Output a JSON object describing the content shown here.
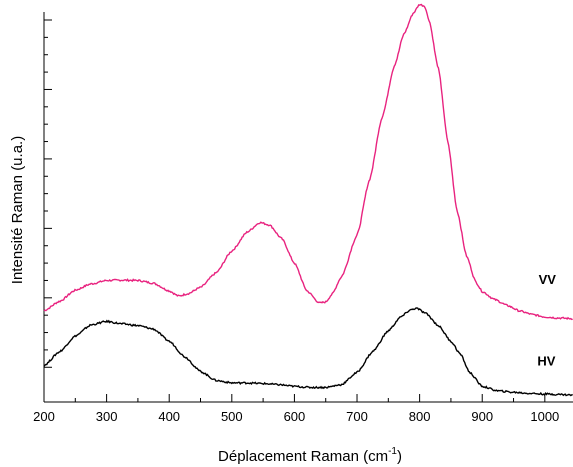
{
  "chart_data": {
    "type": "line",
    "xlabel": "Déplacement Raman (cm",
    "xlabel_superscript": "-1",
    "xlabel_close": ")",
    "ylabel": "Intensité Raman (u.a.)",
    "xlim": [
      200,
      1045
    ],
    "x_ticks": [
      "200",
      "300",
      "400",
      "500",
      "600",
      "700",
      "800",
      "900",
      "1000"
    ],
    "ylim": [
      0,
      11
    ],
    "y_tick_labels_shown": false,
    "grid": false,
    "series": [
      {
        "name": "VV",
        "color": "#e8237f",
        "x": [
          200,
          225,
          250,
          275,
          300,
          325,
          350,
          375,
          400,
          415,
          430,
          450,
          475,
          500,
          525,
          545,
          560,
          580,
          600,
          620,
          640,
          650,
          660,
          675,
          700,
          720,
          740,
          760,
          775,
          790,
          800,
          808,
          815,
          830,
          845,
          860,
          875,
          890,
          900,
          920,
          940,
          960,
          980,
          1000,
          1020,
          1045
        ],
        "y": [
          2.63,
          2.9,
          3.22,
          3.4,
          3.5,
          3.51,
          3.5,
          3.42,
          3.2,
          3.05,
          3.12,
          3.3,
          3.72,
          4.35,
          4.9,
          5.17,
          5.1,
          4.7,
          4.0,
          3.2,
          2.85,
          2.88,
          3.1,
          3.6,
          4.8,
          6.4,
          8.2,
          9.7,
          10.6,
          11.2,
          11.45,
          11.4,
          11.0,
          9.6,
          7.5,
          5.5,
          4.2,
          3.45,
          3.18,
          2.95,
          2.78,
          2.62,
          2.52,
          2.45,
          2.42,
          2.4
        ]
      },
      {
        "name": "HV",
        "color": "#000000",
        "x": [
          200,
          225,
          250,
          275,
          300,
          325,
          350,
          375,
          400,
          425,
          450,
          475,
          500,
          525,
          550,
          575,
          600,
          625,
          650,
          675,
          700,
          725,
          750,
          770,
          785,
          795,
          810,
          830,
          850,
          865,
          880,
          900,
          925,
          950,
          975,
          1000,
          1020,
          1045
        ],
        "y": [
          1.05,
          1.45,
          1.9,
          2.22,
          2.32,
          2.25,
          2.2,
          2.1,
          1.75,
          1.3,
          0.88,
          0.62,
          0.55,
          0.55,
          0.53,
          0.5,
          0.45,
          0.42,
          0.42,
          0.5,
          0.85,
          1.45,
          2.05,
          2.45,
          2.65,
          2.7,
          2.55,
          2.2,
          1.75,
          1.38,
          0.85,
          0.45,
          0.32,
          0.28,
          0.25,
          0.23,
          0.22,
          0.2
        ]
      }
    ],
    "annotations": [
      {
        "text": "VV",
        "x": 990,
        "y": 3.4
      },
      {
        "text": "HV",
        "x": 988,
        "y": 1.05
      }
    ]
  }
}
